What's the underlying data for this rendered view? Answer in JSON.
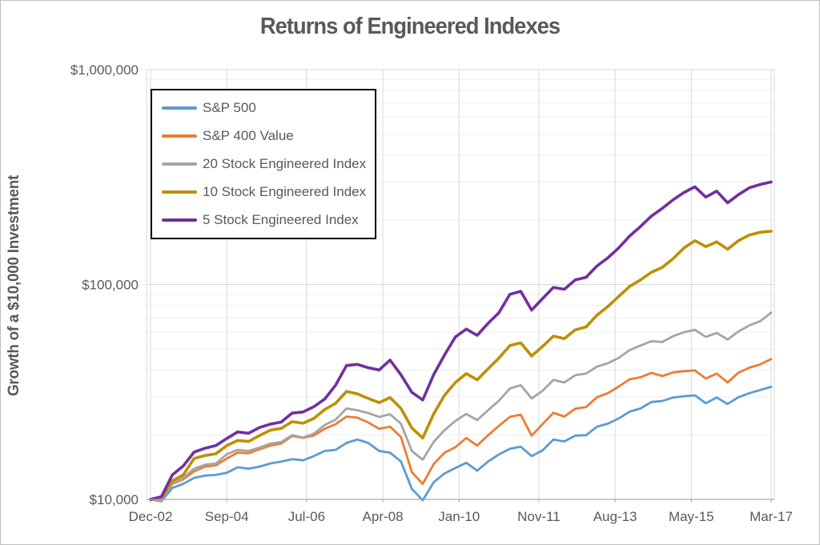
{
  "title": "Returns of Engineered Indexes",
  "y_axis": {
    "title": "Growth of a $10,000 Investment",
    "scale": "log",
    "min": 10000,
    "max": 1000000,
    "ticks": [
      {
        "label": "$1,000,000",
        "value": 1000000
      },
      {
        "label": "$100,000",
        "value": 100000
      },
      {
        "label": "$10,000",
        "value": 10000
      }
    ]
  },
  "x_axis": {
    "ticks": [
      {
        "label": "Dec-02",
        "month": 0
      },
      {
        "label": "Sep-04",
        "month": 21
      },
      {
        "label": "Jul-06",
        "month": 43
      },
      {
        "label": "Apr-08",
        "month": 64
      },
      {
        "label": "Jan-10",
        "month": 85
      },
      {
        "label": "Nov-11",
        "month": 107
      },
      {
        "label": "Aug-13",
        "month": 128
      },
      {
        "label": "May-15",
        "month": 149
      },
      {
        "label": "Mar-17",
        "month": 171
      }
    ]
  },
  "chart_data": {
    "type": "line",
    "title": "Returns of Engineered Indexes",
    "xlabel": "",
    "ylabel": "Growth of a $10,000 Investment",
    "x_unit": "months since Dec-2002 (quarterly samples, Dec-02 through Mar-17)",
    "ylim": [
      10000,
      1000000
    ],
    "log_scale": true,
    "grid": "major-and-log-minor",
    "legend_position": "top-left-inside",
    "x_months": [
      0,
      3,
      6,
      9,
      12,
      15,
      18,
      21,
      24,
      27,
      30,
      33,
      36,
      39,
      42,
      45,
      48,
      51,
      54,
      57,
      60,
      63,
      66,
      69,
      72,
      75,
      78,
      81,
      84,
      87,
      90,
      93,
      96,
      99,
      102,
      105,
      108,
      111,
      114,
      117,
      120,
      123,
      126,
      129,
      132,
      135,
      138,
      141,
      144,
      147,
      150,
      153,
      156,
      159,
      162,
      165,
      168,
      171
    ],
    "series": [
      {
        "name": "S&P 500",
        "color": "#5B9BD5",
        "stroke_width": 2.8,
        "values": [
          10000,
          9800,
          11300,
          11800,
          12600,
          12900,
          13000,
          13300,
          14100,
          13900,
          14200,
          14700,
          15000,
          15400,
          15200,
          15900,
          16800,
          17000,
          18300,
          19000,
          18300,
          16800,
          16500,
          15000,
          11200,
          9900,
          12000,
          13200,
          14000,
          14800,
          13600,
          15000,
          16200,
          17200,
          17600,
          15900,
          16900,
          19000,
          18600,
          19800,
          19900,
          21800,
          22500,
          23800,
          25600,
          26500,
          28400,
          28700,
          29800,
          30200,
          30500,
          28000,
          29800,
          27800,
          29900,
          31200,
          32300,
          33400
        ]
      },
      {
        "name": "S&P 400 Value",
        "color": "#ED7D31",
        "stroke_width": 2.8,
        "values": [
          10000,
          9900,
          11800,
          12400,
          13500,
          14200,
          14400,
          15500,
          16500,
          16400,
          17100,
          17800,
          18200,
          19700,
          19300,
          19800,
          21300,
          22400,
          24300,
          24000,
          22800,
          21300,
          21800,
          19500,
          13400,
          11800,
          14600,
          16500,
          17500,
          19300,
          17800,
          19900,
          22000,
          24200,
          24800,
          19800,
          22400,
          25300,
          24300,
          26400,
          26900,
          29900,
          31200,
          33500,
          36200,
          37000,
          38800,
          37500,
          39000,
          39500,
          39800,
          36500,
          38500,
          35000,
          38900,
          41000,
          42500,
          45000
        ]
      },
      {
        "name": "20 Stock Engineered Index",
        "color": "#A5A5A5",
        "stroke_width": 2.8,
        "values": [
          10000,
          9900,
          11900,
          12600,
          13900,
          14500,
          14700,
          16200,
          17000,
          16800,
          17400,
          18200,
          18500,
          19900,
          19400,
          20200,
          22200,
          23500,
          26500,
          26000,
          25200,
          24200,
          24900,
          22500,
          16800,
          15300,
          18500,
          21000,
          23200,
          25000,
          23400,
          26000,
          28800,
          32800,
          34000,
          29500,
          32000,
          36000,
          35000,
          37800,
          38500,
          41500,
          43000,
          45500,
          49500,
          52000,
          54500,
          54000,
          57500,
          60000,
          61500,
          57000,
          59500,
          55500,
          60500,
          64500,
          67500,
          74000
        ]
      },
      {
        "name": "10 Stock Engineered Index",
        "color": "#BF8F00",
        "stroke_width": 3.6,
        "values": [
          10000,
          10100,
          12200,
          13000,
          15500,
          16000,
          16300,
          17800,
          18800,
          18600,
          19800,
          21000,
          21400,
          23000,
          22600,
          23800,
          26200,
          28000,
          31800,
          31000,
          29500,
          28200,
          29800,
          26500,
          21500,
          19300,
          25000,
          30500,
          35000,
          38500,
          36000,
          40500,
          45500,
          52000,
          53500,
          46500,
          51500,
          57500,
          56000,
          61500,
          63500,
          72000,
          79000,
          88000,
          98000,
          105000,
          114000,
          120000,
          132000,
          148000,
          160000,
          150000,
          158000,
          146000,
          160000,
          170000,
          175000,
          177000
        ]
      },
      {
        "name": "5 Stock Engineered Index",
        "color": "#7030A0",
        "stroke_width": 3.6,
        "values": [
          10000,
          10300,
          13000,
          14300,
          16600,
          17300,
          17800,
          19200,
          20600,
          20300,
          21600,
          22400,
          22900,
          25200,
          25500,
          27000,
          29300,
          34000,
          42000,
          42500,
          41000,
          40000,
          44500,
          38000,
          31500,
          29000,
          38000,
          47000,
          57000,
          62000,
          58000,
          66000,
          74000,
          90000,
          93000,
          76000,
          86000,
          97000,
          95000,
          105000,
          108000,
          122000,
          133000,
          148000,
          168000,
          186000,
          208000,
          226000,
          248000,
          268000,
          285000,
          255000,
          272000,
          240000,
          262000,
          282000,
          292000,
          300000
        ]
      }
    ]
  },
  "colors": {
    "text": "#595959",
    "grid_major": "#D9D9D9",
    "grid_minor": "#EFEFEF",
    "axis_line": "#A6A6A6",
    "plot_border": "#D9D9D9",
    "legend_border": "#000000"
  }
}
